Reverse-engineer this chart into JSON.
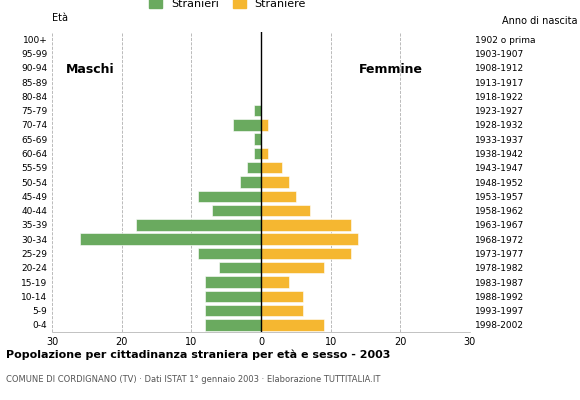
{
  "age_groups": [
    "0-4",
    "5-9",
    "10-14",
    "15-19",
    "20-24",
    "25-29",
    "30-34",
    "35-39",
    "40-44",
    "45-49",
    "50-54",
    "55-59",
    "60-64",
    "65-69",
    "70-74",
    "75-79",
    "80-84",
    "85-89",
    "90-94",
    "95-99",
    "100+"
  ],
  "birth_years": [
    "1998-2002",
    "1993-1997",
    "1988-1992",
    "1983-1987",
    "1978-1982",
    "1973-1977",
    "1968-1972",
    "1963-1967",
    "1958-1962",
    "1953-1957",
    "1948-1952",
    "1943-1947",
    "1938-1942",
    "1933-1937",
    "1928-1932",
    "1923-1927",
    "1918-1922",
    "1913-1917",
    "1908-1912",
    "1903-1907",
    "1902 o prima"
  ],
  "males": [
    8,
    8,
    8,
    8,
    6,
    9,
    26,
    18,
    7,
    9,
    3,
    2,
    1,
    1,
    4,
    1,
    0,
    0,
    0,
    0,
    0
  ],
  "females": [
    9,
    6,
    6,
    4,
    9,
    13,
    14,
    13,
    7,
    5,
    4,
    3,
    1,
    0,
    1,
    0,
    0,
    0,
    0,
    0,
    0
  ],
  "male_color": "#6aaa5f",
  "female_color": "#f5b731",
  "title": "Popolazione per cittadinanza straniera per età e sesso - 2003",
  "subtitle": "COMUNE DI CORDIGNANO (TV) · Dati ISTAT 1° gennaio 2003 · Elaborazione TUTTITALIA.IT",
  "legend_male": "Stranieri",
  "legend_female": "Straniere",
  "label_maschi": "Maschi",
  "label_femmine": "Femmine",
  "eta_label": "Età",
  "anno_label": "Anno di nascita",
  "xlim": 30,
  "background_color": "#ffffff",
  "grid_color": "#b0b0b0"
}
